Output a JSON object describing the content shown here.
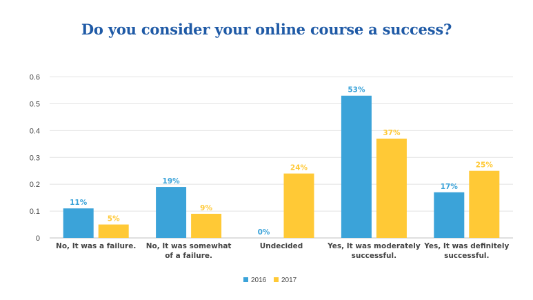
{
  "chart_data": {
    "type": "bar",
    "title": "Do you consider your online course a success?",
    "categories": [
      [
        "No, It was a failure."
      ],
      [
        "No, It was somewhat",
        "of a failure."
      ],
      [
        "Undecided"
      ],
      [
        "Yes, It was moderately",
        "successful."
      ],
      [
        "Yes, It was definitely",
        "successful."
      ]
    ],
    "series": [
      {
        "name": "2016",
        "color": "#3ba3d9",
        "values": [
          0.11,
          0.19,
          0,
          0.53,
          0.17
        ],
        "labels": [
          "11%",
          "19%",
          "0%",
          "53%",
          "17%"
        ]
      },
      {
        "name": "2017",
        "color": "#ffc936",
        "values": [
          0.05,
          0.09,
          0.24,
          0.37,
          0.25
        ],
        "labels": [
          "5%",
          "9%",
          "24%",
          "37%",
          "25%"
        ]
      }
    ],
    "ylim": [
      0,
      0.6
    ],
    "yticks": [
      "0",
      "0.1",
      "0.2",
      "0.3",
      "0.4",
      "0.5",
      "0.6"
    ],
    "grid": true,
    "legend": "bottom-center"
  }
}
